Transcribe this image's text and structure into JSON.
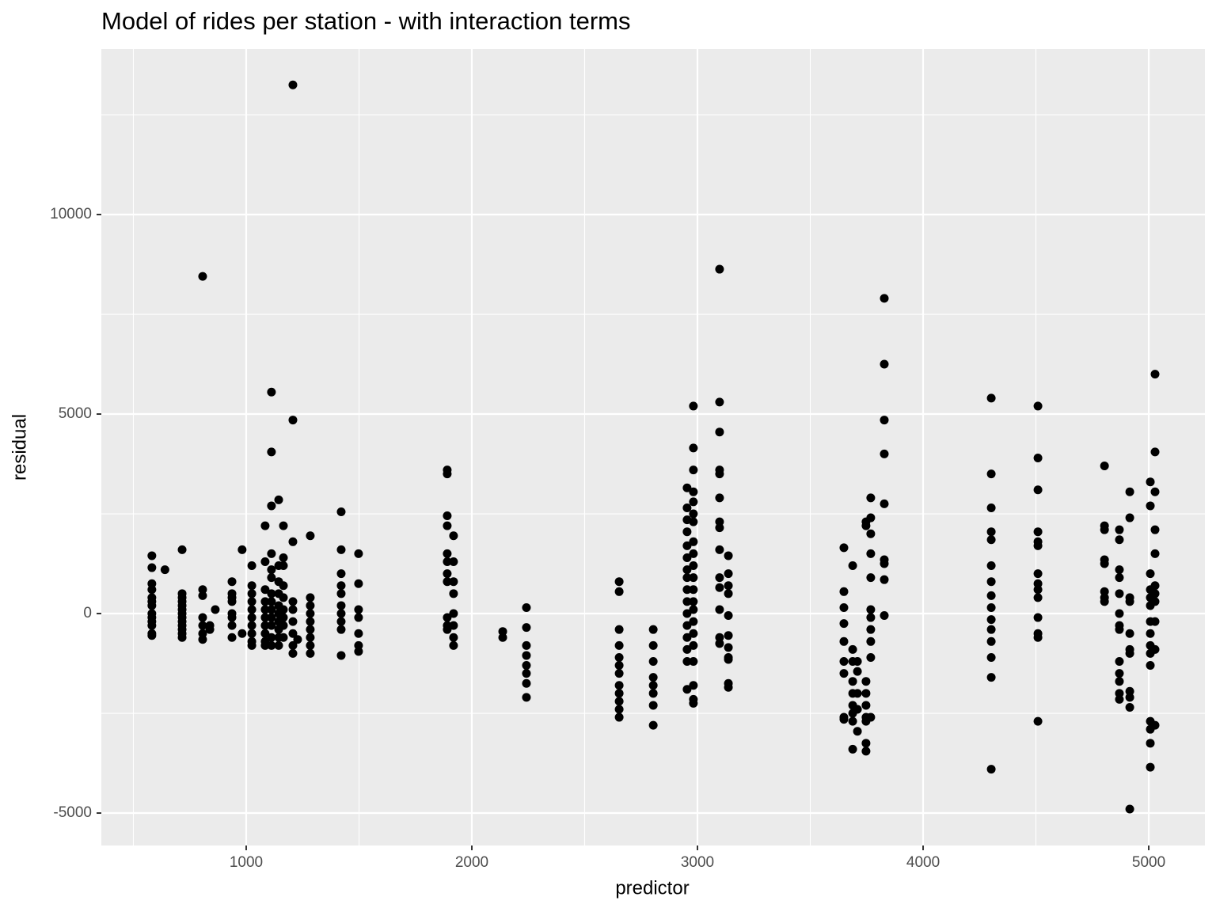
{
  "chart_data": {
    "type": "scatter",
    "title": "Model of rides per station - with interaction terms",
    "x_label": "predictor",
    "y_label": "residual",
    "xlim": [
      358,
      5249
    ],
    "ylim": [
      -5813,
      14147
    ],
    "xticks": [
      1000,
      2000,
      3000,
      4000,
      5000
    ],
    "yticks": [
      -5000,
      0,
      5000,
      10000
    ],
    "grid": true,
    "color": "#000000",
    "x": [
      582,
      582,
      582,
      582,
      582,
      582,
      582,
      582,
      582,
      582,
      582,
      582,
      582,
      716,
      716,
      716,
      716,
      716,
      716,
      716,
      716,
      716,
      716,
      716,
      716,
      716,
      807,
      807,
      807,
      807,
      807,
      807,
      807,
      863,
      839,
      839,
      640,
      937,
      937,
      937,
      937,
      937,
      937,
      937,
      937,
      982,
      982,
      1025,
      1025,
      1025,
      1025,
      1025,
      1025,
      1025,
      1025,
      1025,
      1025,
      1084,
      1084,
      1084,
      1084,
      1084,
      1084,
      1084,
      1084,
      1084,
      1084,
      1112,
      1112,
      1112,
      1112,
      1112,
      1112,
      1112,
      1112,
      1112,
      1112,
      1112,
      1112,
      1112,
      1144,
      1144,
      1144,
      1144,
      1144,
      1144,
      1144,
      1144,
      1144,
      1144,
      1165,
      1165,
      1165,
      1165,
      1165,
      1165,
      1165,
      1165,
      1165,
      1207,
      1207,
      1207,
      1207,
      1207,
      1207,
      1207,
      1207,
      1207,
      1228,
      1284,
      1284,
      1284,
      1284,
      1284,
      1284,
      1284,
      1284,
      1284,
      1421,
      1421,
      1421,
      1421,
      1421,
      1421,
      1421,
      1421,
      1421,
      1421,
      1498,
      1498,
      1498,
      1498,
      1498,
      1498,
      1498,
      1891,
      1891,
      1891,
      1891,
      1891,
      1891,
      1891,
      1891,
      1891,
      1891,
      1891,
      1919,
      1919,
      1919,
      1919,
      1919,
      1919,
      1919,
      1919,
      2137,
      2137,
      2242,
      2242,
      2242,
      2242,
      2242,
      2242,
      2242,
      2242,
      2653,
      2653,
      2653,
      2653,
      2653,
      2653,
      2653,
      2653,
      2653,
      2653,
      2653,
      2653,
      2804,
      2804,
      2804,
      2804,
      2804,
      2804,
      2804,
      2804,
      2954,
      2954,
      2954,
      2954,
      2954,
      2954,
      2954,
      2954,
      2954,
      2954,
      2954,
      2954,
      2954,
      2954,
      2954,
      2954,
      2982,
      2982,
      2982,
      2982,
      2982,
      2982,
      2982,
      2982,
      2982,
      2982,
      2982,
      2982,
      2982,
      2982,
      2982,
      2982,
      2982,
      2982,
      2982,
      2982,
      2982,
      3098,
      3098,
      3098,
      3098,
      3098,
      3098,
      3098,
      3098,
      3098,
      3098,
      3098,
      3098,
      3098,
      3098,
      3137,
      3137,
      3137,
      3137,
      3137,
      3137,
      3137,
      3137,
      3137,
      3137,
      3137,
      3649,
      3649,
      3649,
      3649,
      3649,
      3649,
      3649,
      3649,
      3649,
      3688,
      3688,
      3688,
      3688,
      3688,
      3688,
      3688,
      3688,
      3688,
      3709,
      3709,
      3709,
      3709,
      3709,
      3747,
      3747,
      3747,
      3747,
      3747,
      3747,
      3747,
      3747,
      3747,
      3768,
      3768,
      3768,
      3768,
      3768,
      3768,
      3768,
      3768,
      3768,
      3768,
      3768,
      3828,
      3828,
      3828,
      3828,
      3828,
      3828,
      3828,
      3828,
      3828,
      4302,
      4302,
      4302,
      4302,
      4302,
      4302,
      4302,
      4302,
      4302,
      4302,
      4302,
      4302,
      4302,
      4302,
      4302,
      4509,
      4509,
      4509,
      4509,
      4509,
      4509,
      4509,
      4509,
      4509,
      4509,
      4509,
      4509,
      4509,
      4509,
      4804,
      4804,
      4804,
      4804,
      4804,
      4804,
      4804,
      4804,
      4870,
      4870,
      4870,
      4870,
      4870,
      4870,
      4870,
      4870,
      4870,
      4870,
      4870,
      4870,
      4870,
      4916,
      4916,
      4916,
      4916,
      4916,
      4916,
      4916,
      4916,
      4916,
      4916,
      4916,
      5007,
      5007,
      5007,
      5007,
      5007,
      5007,
      5007,
      5007,
      5007,
      5007,
      5007,
      5007,
      5007,
      5007,
      5007,
      5028,
      5028,
      5028,
      5028,
      5028,
      5028,
      5028,
      5028,
      5028,
      5028,
      5028
    ],
    "values": [
      1450,
      1150,
      750,
      600,
      400,
      200,
      0,
      -100,
      -300,
      -500,
      -550,
      -200,
      300,
      1600,
      500,
      400,
      300,
      200,
      100,
      0,
      -100,
      -200,
      -300,
      -400,
      -500,
      -600,
      600,
      450,
      -100,
      -300,
      -500,
      -650,
      8450,
      100,
      -300,
      -400,
      1100,
      800,
      500,
      400,
      300,
      0,
      -100,
      -300,
      -600,
      1600,
      -500,
      1200,
      700,
      500,
      300,
      100,
      -100,
      -300,
      -500,
      -700,
      -800,
      2200,
      1300,
      600,
      300,
      100,
      -100,
      -300,
      -500,
      -700,
      -800,
      5550,
      4050,
      2700,
      1500,
      1100,
      900,
      500,
      300,
      100,
      -100,
      -300,
      -600,
      -800,
      2850,
      1200,
      800,
      500,
      200,
      0,
      -200,
      -400,
      -600,
      -800,
      2200,
      1400,
      1200,
      700,
      400,
      100,
      -100,
      -300,
      -600,
      13250,
      4850,
      1800,
      300,
      100,
      -200,
      -500,
      -800,
      -1000,
      -650,
      1950,
      400,
      200,
      0,
      -200,
      -400,
      -600,
      -800,
      -1000,
      2550,
      1600,
      1000,
      700,
      500,
      200,
      0,
      -200,
      -400,
      -1050,
      1500,
      750,
      100,
      -100,
      -500,
      -800,
      -950,
      3600,
      3500,
      2450,
      2200,
      1500,
      1300,
      1000,
      800,
      -100,
      -300,
      -400,
      1950,
      1300,
      800,
      500,
      0,
      -300,
      -600,
      -800,
      -450,
      -600,
      150,
      -350,
      -800,
      -1050,
      -1300,
      -1500,
      -1750,
      -2100,
      800,
      550,
      -400,
      -800,
      -1100,
      -1300,
      -1500,
      -1800,
      -2000,
      -2200,
      -2400,
      -2600,
      -400,
      -800,
      -1200,
      -1600,
      -1800,
      -2000,
      -2300,
      -2800,
      3150,
      2650,
      2350,
      2050,
      1700,
      1400,
      1100,
      900,
      600,
      300,
      0,
      -300,
      -600,
      -900,
      -1200,
      -1900,
      5200,
      4150,
      3600,
      3050,
      2800,
      2500,
      2300,
      1800,
      1500,
      1200,
      900,
      600,
      300,
      100,
      -200,
      -500,
      -800,
      -1200,
      -1800,
      -2150,
      -2250,
      8630,
      5300,
      4550,
      3600,
      3500,
      2900,
      2300,
      2150,
      1600,
      900,
      650,
      100,
      -600,
      -750,
      1450,
      1000,
      700,
      500,
      -50,
      -550,
      -850,
      -1100,
      -1150,
      -1750,
      -1850,
      1650,
      550,
      150,
      -250,
      -700,
      -1200,
      -1500,
      -2600,
      -2650,
      1200,
      -900,
      -1200,
      -1700,
      -2000,
      -2300,
      -2500,
      -2700,
      -3400,
      -1200,
      -1450,
      -2000,
      -2400,
      -2950,
      2300,
      2200,
      -1700,
      -2000,
      -2300,
      -2600,
      -2700,
      -3250,
      -3450,
      2900,
      2400,
      2000,
      1500,
      900,
      100,
      -100,
      -400,
      -700,
      -1100,
      -2600,
      7900,
      6250,
      4850,
      4000,
      2750,
      1350,
      1250,
      850,
      -50,
      5400,
      3500,
      2650,
      2050,
      1850,
      1200,
      800,
      450,
      150,
      -150,
      -400,
      -700,
      -1100,
      -1600,
      -3900,
      5200,
      3900,
      3100,
      2050,
      1800,
      1700,
      1000,
      750,
      600,
      400,
      -100,
      -500,
      -600,
      -2700,
      3700,
      2200,
      2100,
      1350,
      1250,
      550,
      400,
      300,
      2100,
      1850,
      1100,
      900,
      500,
      0,
      -300,
      -400,
      -1200,
      -1500,
      -1700,
      -2000,
      -2150,
      3050,
      2400,
      400,
      300,
      -500,
      -900,
      -1000,
      -1950,
      -2100,
      -2350,
      -4900,
      3300,
      2700,
      1000,
      600,
      400,
      200,
      -200,
      -500,
      -800,
      -1000,
      -1300,
      -2700,
      -2900,
      -3250,
      -3850,
      6000,
      4050,
      3050,
      2100,
      1500,
      700,
      500,
      300,
      -200,
      -900,
      -2800
    ]
  }
}
